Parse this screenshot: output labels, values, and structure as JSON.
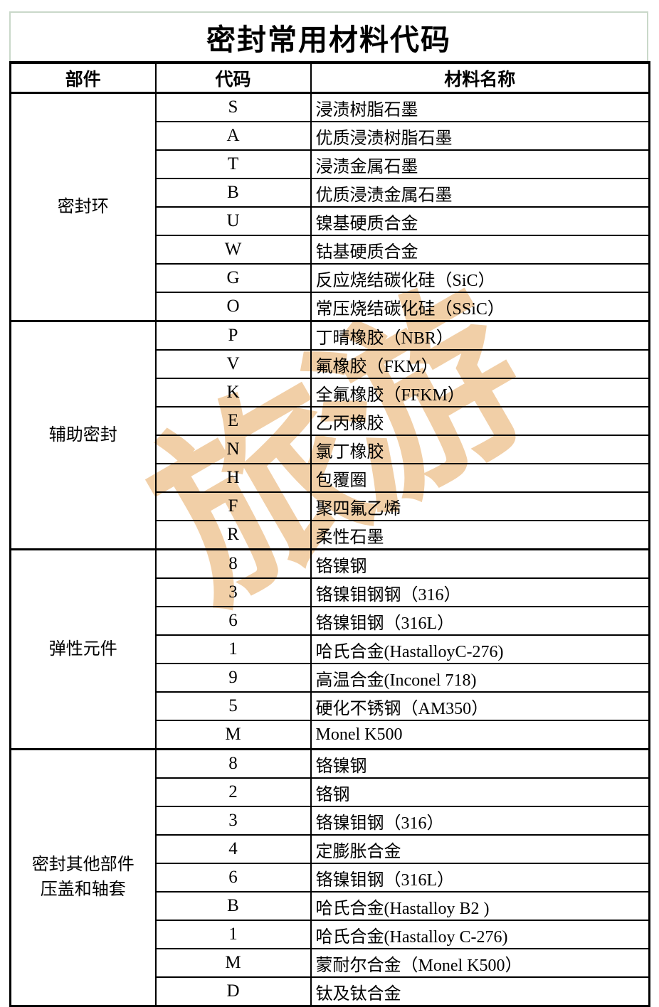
{
  "page": {
    "title": "密封常用材料代码",
    "watermark_text": "旅游",
    "colors": {
      "background": "#ffffff",
      "frame_green": "#c9d8c9",
      "table_border": "#000000",
      "text": "#000000",
      "watermark_tan": "#eec493"
    }
  },
  "table": {
    "headers": [
      "部件",
      "代码",
      "材料名称"
    ],
    "groups": [
      {
        "part": "密封环",
        "rows": [
          {
            "code": "S",
            "material": "浸渍树脂石墨"
          },
          {
            "code": "A",
            "material": "优质浸渍树脂石墨"
          },
          {
            "code": "T",
            "material": "浸渍金属石墨"
          },
          {
            "code": "B",
            "material": "优质浸渍金属石墨"
          },
          {
            "code": "U",
            "material": "镍基硬质合金"
          },
          {
            "code": "W",
            "material": "钴基硬质合金"
          },
          {
            "code": "G",
            "material": "反应烧结碳化硅（SiC）"
          },
          {
            "code": "O",
            "material": "常压烧结碳化硅（SSiC）"
          }
        ]
      },
      {
        "part": "辅助密封",
        "rows": [
          {
            "code": "P",
            "material": "丁晴橡胶（NBR）"
          },
          {
            "code": "V",
            "material": "氟橡胶（FKM）"
          },
          {
            "code": "K",
            "material": "全氟橡胶（FFKM）"
          },
          {
            "code": "E",
            "material": "乙丙橡胶"
          },
          {
            "code": "N",
            "material": "氯丁橡胶"
          },
          {
            "code": "H",
            "material": "包覆圈"
          },
          {
            "code": "F",
            "material": "聚四氟乙烯"
          },
          {
            "code": "R",
            "material": "柔性石墨"
          }
        ]
      },
      {
        "part": "弹性元件",
        "rows": [
          {
            "code": "8",
            "material": "铬镍钢"
          },
          {
            "code": "3",
            "material": "铬镍钼钢钢（316）"
          },
          {
            "code": "6",
            "material": "铬镍钼钢（316L）"
          },
          {
            "code": "1",
            "material": "哈氏合金(HastalloyC-276)"
          },
          {
            "code": "9",
            "material": "高温合金(Inconel 718)"
          },
          {
            "code": "5",
            "material": "硬化不锈钢（AM350）"
          },
          {
            "code": "M",
            "material": "Monel K500"
          }
        ]
      },
      {
        "part": "密封其他部件\n压盖和轴套",
        "rows": [
          {
            "code": "8",
            "material": "铬镍钢"
          },
          {
            "code": "2",
            "material": "铬钢"
          },
          {
            "code": "3",
            "material": "铬镍钼钢（316）"
          },
          {
            "code": "4",
            "material": "定膨胀合金"
          },
          {
            "code": "6",
            "material": "铬镍钼钢（316L）"
          },
          {
            "code": "B",
            "material": "哈氏合金(Hastalloy B2 )"
          },
          {
            "code": "1",
            "material": "哈氏合金(Hastalloy C-276)"
          },
          {
            "code": "M",
            "material": "蒙耐尔合金（Monel K500）"
          },
          {
            "code": "D",
            "material": "钛及钛合金"
          }
        ]
      }
    ]
  }
}
